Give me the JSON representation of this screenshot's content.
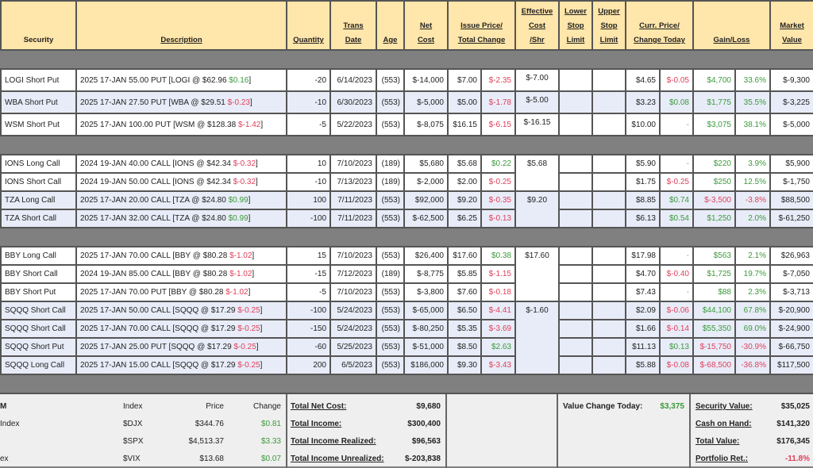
{
  "header": [
    "Security",
    "Description",
    "Quantity",
    "Trans\nDate",
    "Age",
    "Net\nCost",
    "Issue Price/\nTotal Change",
    "Effective\nCost\n/Shr",
    "Lower\nStop\nLimit",
    "Upper\nStop\nLimit",
    "Curr. Price/\nChange Today",
    "Gain/Loss",
    "Market\nValue"
  ],
  "groups": [
    [
      {
        "sec": "LOGI Short Put",
        "desc": "2025 17-JAN 55.00 PUT [LOGI @ $62.96 ",
        "dchg": "$0.16",
        "qty": "-20",
        "date": "6/14/2023",
        "age": "(553)",
        "net": "$-14,000",
        "issue": "$7.00",
        "tchg": "$-2.35",
        "eff": "$-7.00",
        "curr": "$4.65",
        "today": "$-0.05",
        "gain": "$4,700",
        "pct": "33.6%",
        "mkt": "$-9,300",
        "alt": false
      },
      {
        "sec": "WBA Short Put",
        "desc": "2025 17-JAN 27.50 PUT [WBA @ $29.51 ",
        "dchg": "$-0.23",
        "qty": "-10",
        "date": "6/30/2023",
        "age": "(553)",
        "net": "$-5,000",
        "issue": "$5.00",
        "tchg": "$-1.78",
        "eff": "$-5.00",
        "curr": "$3.23",
        "today": "$0.08",
        "gain": "$1,775",
        "pct": "35.5%",
        "mkt": "$-3,225",
        "alt": true
      },
      {
        "sec": "WSM Short Put",
        "desc": "2025 17-JAN 100.00 PUT [WSM @ $128.38 ",
        "dchg": "$-1.42",
        "qty": "-5",
        "date": "5/22/2023",
        "age": "(553)",
        "net": "$-8,075",
        "issue": "$16.15",
        "tchg": "$-6.15",
        "eff": "$-16.15",
        "curr": "$10.00",
        "today": "-",
        "gain": "$3,075",
        "pct": "38.1%",
        "mkt": "$-5,000",
        "alt": false
      }
    ],
    [
      {
        "sec": "IONS Long Call",
        "desc": "2024 19-JAN 40.00 CALL [IONS @ $42.34 ",
        "dchg": "$-0.32",
        "qty": "10",
        "date": "7/10/2023",
        "age": "(189)",
        "net": "$5,680",
        "issue": "$5.68",
        "tchg": "$0.22",
        "eff": "$5.68",
        "curr": "$5.90",
        "today": "-",
        "gain": "$220",
        "pct": "3.9%",
        "mkt": "$5,900",
        "alt": false
      },
      {
        "sec": "IONS Short Call",
        "desc": "2024 19-JAN 50.00 CALL [IONS @ $42.34 ",
        "dchg": "$-0.32",
        "qty": "-10",
        "date": "7/13/2023",
        "age": "(189)",
        "net": "$-2,000",
        "issue": "$2.00",
        "tchg": "$-0.25",
        "curr": "$1.75",
        "today": "$-0.25",
        "gain": "$250",
        "pct": "12.5%",
        "mkt": "$-1,750",
        "alt": false
      },
      {
        "sec": "TZA Long Call",
        "desc": "2025 17-JAN 20.00 CALL [TZA @ $24.80 ",
        "dchg": "$0.99",
        "qty": "100",
        "date": "7/11/2023",
        "age": "(553)",
        "net": "$92,000",
        "issue": "$9.20",
        "tchg": "$-0.35",
        "eff": "$9.20",
        "curr": "$8.85",
        "today": "$0.74",
        "gain": "$-3,500",
        "pct": "-3.8%",
        "mkt": "$88,500",
        "alt": true
      },
      {
        "sec": "TZA Short Call",
        "desc": "2025 17-JAN 32.00 CALL [TZA @ $24.80 ",
        "dchg": "$0.99",
        "qty": "-100",
        "date": "7/11/2023",
        "age": "(553)",
        "net": "$-62,500",
        "issue": "$6.25",
        "tchg": "$-0.13",
        "curr": "$6.13",
        "today": "$0.54",
        "gain": "$1,250",
        "pct": "2.0%",
        "mkt": "$-61,250",
        "alt": true
      }
    ],
    [
      {
        "sec": "BBY Long Call",
        "desc": "2025 17-JAN 70.00 CALL [BBY @ $80.28 ",
        "dchg": "$-1.02",
        "qty": "15",
        "date": "7/10/2023",
        "age": "(553)",
        "net": "$26,400",
        "issue": "$17.60",
        "tchg": "$0.38",
        "eff": "$17.60",
        "curr": "$17.98",
        "today": "-",
        "gain": "$563",
        "pct": "2.1%",
        "mkt": "$26,963",
        "alt": false
      },
      {
        "sec": "BBY Short Call",
        "desc": "2024 19-JAN 85.00 CALL [BBY @ $80.28 ",
        "dchg": "$-1.02",
        "qty": "-15",
        "date": "7/12/2023",
        "age": "(189)",
        "net": "$-8,775",
        "issue": "$5.85",
        "tchg": "$-1.15",
        "curr": "$4.70",
        "today": "$-0.40",
        "gain": "$1,725",
        "pct": "19.7%",
        "mkt": "$-7,050",
        "alt": false
      },
      {
        "sec": "BBY Short Put",
        "desc": "2025 17-JAN 70.00 PUT [BBY @ $80.28 ",
        "dchg": "$-1.02",
        "qty": "-5",
        "date": "7/10/2023",
        "age": "(553)",
        "net": "$-3,800",
        "issue": "$7.60",
        "tchg": "$-0.18",
        "curr": "$7.43",
        "today": "-",
        "gain": "$88",
        "pct": "2.3%",
        "mkt": "$-3,713",
        "alt": false
      },
      {
        "sec": "SQQQ Short Call",
        "desc": "2025 17-JAN 50.00 CALL [SQQQ @ $17.29 ",
        "dchg": "$-0.25",
        "qty": "-100",
        "date": "5/24/2023",
        "age": "(553)",
        "net": "$-65,000",
        "issue": "$6.50",
        "tchg": "$-4.41",
        "eff": "$-1.60",
        "curr": "$2.09",
        "today": "$-0.06",
        "gain": "$44,100",
        "pct": "67.8%",
        "mkt": "$-20,900",
        "alt": true
      },
      {
        "sec": "SQQQ Short Call",
        "desc": "2025 17-JAN 70.00 CALL [SQQQ @ $17.29 ",
        "dchg": "$-0.25",
        "qty": "-150",
        "date": "5/24/2023",
        "age": "(553)",
        "net": "$-80,250",
        "issue": "$5.35",
        "tchg": "$-3.69",
        "curr": "$1.66",
        "today": "$-0.14",
        "gain": "$55,350",
        "pct": "69.0%",
        "mkt": "$-24,900",
        "alt": true
      },
      {
        "sec": "SQQQ Short Put",
        "desc": "2025 17-JAN 25.00 PUT [SQQQ @ $17.29 ",
        "dchg": "$-0.25",
        "qty": "-60",
        "date": "5/25/2023",
        "age": "(553)",
        "net": "$-51,000",
        "issue": "$8.50",
        "tchg": "$2.63",
        "curr": "$11.13",
        "today": "$0.13",
        "gain": "$-15,750",
        "pct": "-30.9%",
        "mkt": "$-66,750",
        "alt": true
      },
      {
        "sec": "SQQQ Long Call",
        "desc": "2025 17-JAN 15.00 CALL [SQQQ @ $17.29 ",
        "dchg": "$-0.25",
        "qty": "200",
        "date": "6/5/2023",
        "age": "(553)",
        "net": "$186,000",
        "issue": "$9.30",
        "tchg": "$-3.43",
        "curr": "$5.88",
        "today": "$-0.08",
        "gain": "$-68,500",
        "pct": "-36.8%",
        "mkt": "$117,500",
        "alt": true
      }
    ]
  ],
  "indexes": {
    "header": {
      "name": "M",
      "index": "Index",
      "price": "Price",
      "change": "Change"
    },
    "rows": [
      {
        "name": "Index",
        "index": "$DJX",
        "price": "$344.76",
        "change": "$0.81"
      },
      {
        "name": "",
        "index": "$SPX",
        "price": "$4,513.37",
        "change": "$3.33"
      },
      {
        "name": "ex",
        "index": "$VIX",
        "price": "$13.68",
        "change": "$0.07"
      }
    ]
  },
  "totals": [
    {
      "label": "Total Net Cost:",
      "value": "$9,680"
    },
    {
      "label": "Total Income:",
      "value": "$300,400"
    },
    {
      "label": "Total Income Realized:",
      "value": "$96,563"
    },
    {
      "label": "Total Income Unrealized:",
      "value": "$-203,838"
    }
  ],
  "value_change": {
    "label": "Value Change Today:",
    "value": "$3,375"
  },
  "portfolio": [
    {
      "label": "Security Value:",
      "value": "$35,025"
    },
    {
      "label": "Cash on Hand:",
      "value": "$141,320"
    },
    {
      "label": "Total Value:",
      "value": "$176,345"
    },
    {
      "label": "Portfolio Ret.:",
      "value": "-11.8%"
    }
  ],
  "colors": {
    "header_bg": "#ffe6aa",
    "alt_row": "#e8ecf8",
    "positive": "#3b9a3b",
    "negative": "#e0405a",
    "separator": "#808080"
  }
}
